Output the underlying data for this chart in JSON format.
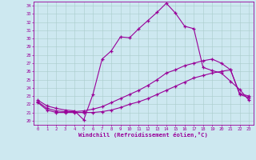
{
  "xlabel": "Windchill (Refroidissement éolien,°C)",
  "xlim": [
    -0.5,
    23.5
  ],
  "ylim": [
    19.5,
    34.5
  ],
  "xticks": [
    0,
    1,
    2,
    3,
    4,
    5,
    6,
    7,
    8,
    9,
    10,
    11,
    12,
    13,
    14,
    15,
    16,
    17,
    18,
    19,
    20,
    21,
    22,
    23
  ],
  "yticks": [
    20,
    21,
    22,
    23,
    24,
    25,
    26,
    27,
    28,
    29,
    30,
    31,
    32,
    33,
    34
  ],
  "bg_color": "#cde8f0",
  "grid_color": "#aacccc",
  "line_color": "#990099",
  "line1_x": [
    0,
    1,
    2,
    3,
    4,
    5,
    6,
    7,
    8,
    9,
    10,
    11,
    12,
    13,
    14,
    15,
    16,
    17,
    18,
    19,
    20,
    21,
    22,
    23
  ],
  "line1_y": [
    22.5,
    21.8,
    21.5,
    21.3,
    21.2,
    20.1,
    23.2,
    27.5,
    28.5,
    30.2,
    30.1,
    31.2,
    32.2,
    33.2,
    34.3,
    33.1,
    31.5,
    31.2,
    26.5,
    26.1,
    25.8,
    24.8,
    23.8,
    22.5
  ],
  "line2_x": [
    0,
    1,
    2,
    3,
    4,
    5,
    6,
    7,
    8,
    9,
    10,
    11,
    12,
    13,
    14,
    15,
    16,
    17,
    18,
    19,
    20,
    21,
    22,
    23
  ],
  "line2_y": [
    22.3,
    21.5,
    21.2,
    21.1,
    21.1,
    21.2,
    21.4,
    21.7,
    22.2,
    22.7,
    23.2,
    23.7,
    24.3,
    25.0,
    25.8,
    26.2,
    26.7,
    27.0,
    27.3,
    27.5,
    27.0,
    26.2,
    23.3,
    23.0
  ],
  "line3_x": [
    0,
    1,
    2,
    3,
    4,
    5,
    6,
    7,
    8,
    9,
    10,
    11,
    12,
    13,
    14,
    15,
    16,
    17,
    18,
    19,
    20,
    21,
    22,
    23
  ],
  "line3_y": [
    22.2,
    21.3,
    21.0,
    21.0,
    21.0,
    21.0,
    21.0,
    21.1,
    21.3,
    21.6,
    22.0,
    22.3,
    22.7,
    23.2,
    23.7,
    24.2,
    24.7,
    25.2,
    25.5,
    25.8,
    26.0,
    26.2,
    23.2,
    22.8
  ]
}
